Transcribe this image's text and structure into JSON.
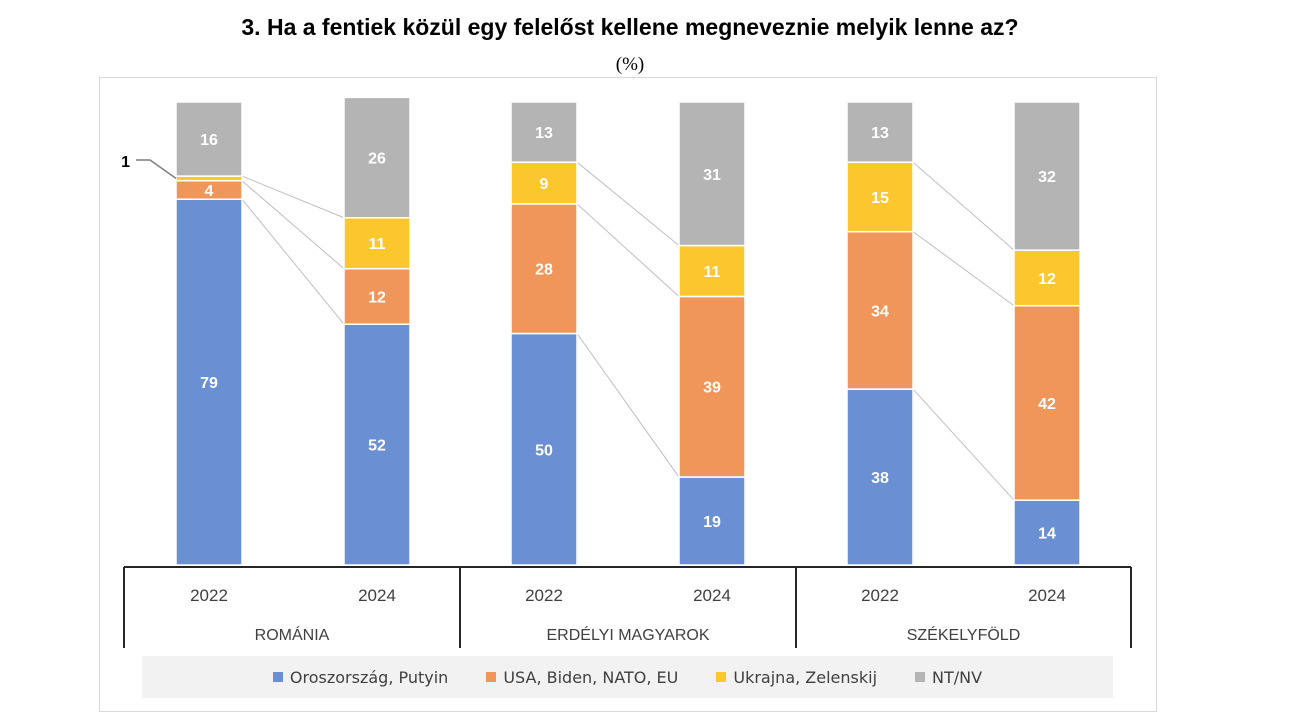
{
  "title": "3.  Ha a fentiek közül egy felelőst kellene megneveznie melyik lenne az?",
  "subtitle": "(%)",
  "chart_data": {
    "type": "bar",
    "stacked": true,
    "groups": [
      {
        "name": "ROMÁNIA",
        "years": [
          "2022",
          "2024"
        ]
      },
      {
        "name": "ERDÉLYI MAGYAROK",
        "years": [
          "2022",
          "2024"
        ]
      },
      {
        "name": "SZÉKELYFÖLD",
        "years": [
          "2022",
          "2024"
        ]
      }
    ],
    "series": [
      {
        "name": "Oroszország, Putyin",
        "color": "#6a8fd2",
        "values": [
          79,
          52,
          50,
          19,
          38,
          14
        ]
      },
      {
        "name": "USA, Biden, NATO, EU",
        "color": "#f0965a",
        "values": [
          4,
          12,
          28,
          39,
          34,
          42
        ]
      },
      {
        "name": "Ukrajna, Zelenskij",
        "color": "#fcc72e",
        "values": [
          1,
          11,
          9,
          11,
          15,
          12
        ]
      },
      {
        "name": "NT/NV",
        "color": "#b4b4b4",
        "values": [
          16,
          26,
          13,
          31,
          13,
          32
        ]
      }
    ],
    "data_labels": [
      [
        "79",
        "52",
        "50",
        "19",
        "38",
        "14"
      ],
      [
        "4",
        "12",
        "28",
        "39",
        "34",
        "42"
      ],
      [
        "",
        "11",
        "9",
        "11",
        "15",
        "12"
      ],
      [
        "16",
        "26",
        "13",
        "31",
        "13",
        "32"
      ]
    ],
    "callout": "1",
    "ylim": [
      0,
      100
    ],
    "legend_position": "bottom",
    "grid": false
  }
}
